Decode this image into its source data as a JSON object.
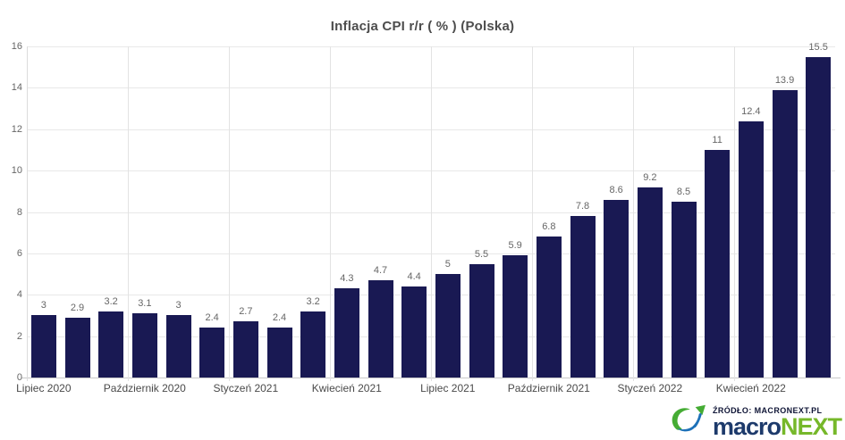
{
  "page": {
    "background": "#ffffff"
  },
  "chart_data": {
    "type": "bar",
    "title": "Inflacja CPI r/r ( % ) (Polska)",
    "values": [
      3,
      2.9,
      3.2,
      3.1,
      3,
      2.4,
      2.7,
      2.4,
      3.2,
      4.3,
      4.7,
      4.4,
      5,
      5.5,
      5.9,
      6.8,
      7.8,
      8.6,
      9.2,
      8.5,
      11,
      12.4,
      13.9,
      15.5
    ],
    "bar_value_labels": [
      "3",
      "2.9",
      "3.2",
      "3.1",
      "3",
      "2.4",
      "2.7",
      "2.4",
      "3.2",
      "4.3",
      "4.7",
      "4.4",
      "5",
      "5.5",
      "5.9",
      "6.8",
      "7.8",
      "8.6",
      "9.2",
      "8.5",
      "11",
      "12.4",
      "13.9",
      "15.5"
    ],
    "x_tick_labels": [
      "Lipiec 2020",
      "Październik 2020",
      "Styczeń 2021",
      "Kwiecień 2021",
      "Lipiec 2021",
      "Październik 2021",
      "Styczeń 2022",
      "Kwiecień 2022"
    ],
    "x_tick_bar_indices": [
      0,
      3,
      6,
      9,
      12,
      15,
      18,
      21
    ],
    "y_ticks": [
      "0",
      "2",
      "4",
      "6",
      "8",
      "10",
      "12",
      "14",
      "16"
    ],
    "ylim": [
      0,
      16
    ],
    "grid": true,
    "legend": "none",
    "vertical_grid_every_bars": 3,
    "bar_color": "#191953",
    "value_label_color": "#666666",
    "title_color": "#4d4d4d"
  },
  "footer": {
    "source_label": "ŹRÓDŁO: MACRONEXT.PL",
    "brand": {
      "part1": "macro",
      "part2": "NEXT",
      "part1_color": "#1d3a6b",
      "part2_color": "#76b82a"
    },
    "logo_icon": "macronext-swoosh-arrow-icon",
    "icon_green": "#45ac34",
    "icon_blue": "#1d71b8"
  }
}
